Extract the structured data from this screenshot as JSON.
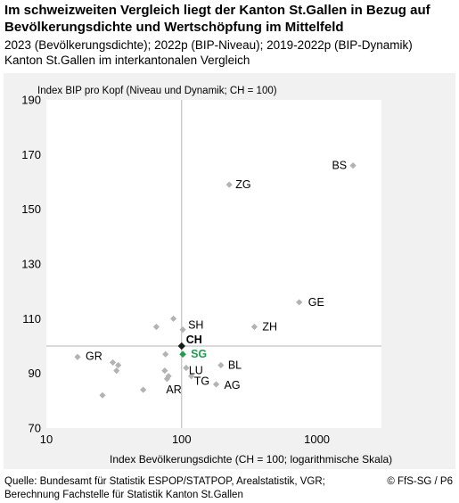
{
  "header": {
    "title": "Im schweizweiten Vergleich liegt der Kanton St.Gallen in Bezug auf Bevölkerungsdichte und Wertschöpfung im Mittelfeld",
    "subtitle1": "2023 (Bevölkerungsdichte); 2022p (BIP-Niveau); 2019-2022p (BIP-Dynamik)",
    "subtitle2": "Kanton St.Gallen im interkantonalen Vergleich"
  },
  "footer": {
    "source_line1": "Quelle: Bundesamt für Statistik ESPOP/STATPOP, Arealstatistik, VGR;",
    "source_line2": "Berechnung Fachstelle für Statistik Kanton St.Gallen",
    "credit": "© FfS-SG / P6"
  },
  "colors": {
    "background_panel": "#f1f1f1",
    "plot_area": "#ffffff",
    "point": "#b3b3b3",
    "highlight": "#1f9e4f",
    "reference": "#1a1a1a",
    "reference_lines": "#b5b5b5"
  },
  "chart_data": {
    "type": "scatter",
    "xlabel": "Index Bevölkerungsdichte (CH = 100; logarithmische Skala)",
    "ylabel": "Index BIP pro Kopf (Niveau und Dynamik; CH = 100)",
    "xscale": "log",
    "xlim": [
      10,
      3000
    ],
    "ylim": [
      70,
      190
    ],
    "xticks": [
      10,
      100,
      1000
    ],
    "xtick_labels": [
      "10",
      "100",
      "1000"
    ],
    "yticks": [
      70,
      90,
      110,
      130,
      150,
      170,
      190
    ],
    "ytick_labels": [
      "70",
      "90",
      "110",
      "130",
      "150",
      "170",
      "190"
    ],
    "grid": false,
    "reference_lines": {
      "x": 100,
      "y": 100
    },
    "points": [
      {
        "label": "BS",
        "x": 1850,
        "y": 166,
        "style": "normal"
      },
      {
        "label": "ZG",
        "x": 225,
        "y": 159,
        "style": "normal"
      },
      {
        "label": "GE",
        "x": 740,
        "y": 116,
        "style": "normal"
      },
      {
        "label": "ZH",
        "x": 345,
        "y": 107,
        "style": "normal"
      },
      {
        "label": "SH",
        "x": 102,
        "y": 106,
        "style": "normal"
      },
      {
        "label": "CH",
        "x": 100,
        "y": 100,
        "style": "reference"
      },
      {
        "label": "SG",
        "x": 102,
        "y": 97,
        "style": "highlight"
      },
      {
        "label": "BL",
        "x": 195,
        "y": 93,
        "style": "normal"
      },
      {
        "label": "AG",
        "x": 180,
        "y": 86,
        "style": "normal"
      },
      {
        "label": "LU",
        "x": 108,
        "y": 92,
        "style": "normal"
      },
      {
        "label": "TG",
        "x": 118,
        "y": 89,
        "style": "normal"
      },
      {
        "label": "AR",
        "x": 78,
        "y": 88,
        "style": "normal"
      },
      {
        "label": "GR",
        "x": 17,
        "y": 96,
        "style": "normal"
      },
      {
        "label": "",
        "x": 65,
        "y": 107,
        "style": "normal"
      },
      {
        "label": "",
        "x": 87,
        "y": 110,
        "style": "normal"
      },
      {
        "label": "",
        "x": 76,
        "y": 97,
        "style": "normal"
      },
      {
        "label": "",
        "x": 31,
        "y": 94,
        "style": "normal"
      },
      {
        "label": "",
        "x": 34,
        "y": 93,
        "style": "normal"
      },
      {
        "label": "",
        "x": 33,
        "y": 91,
        "style": "normal"
      },
      {
        "label": "",
        "x": 75,
        "y": 91,
        "style": "normal"
      },
      {
        "label": "",
        "x": 80,
        "y": 89,
        "style": "normal"
      },
      {
        "label": "",
        "x": 52,
        "y": 84,
        "style": "normal"
      },
      {
        "label": "",
        "x": 26,
        "y": 82,
        "style": "normal"
      }
    ]
  }
}
